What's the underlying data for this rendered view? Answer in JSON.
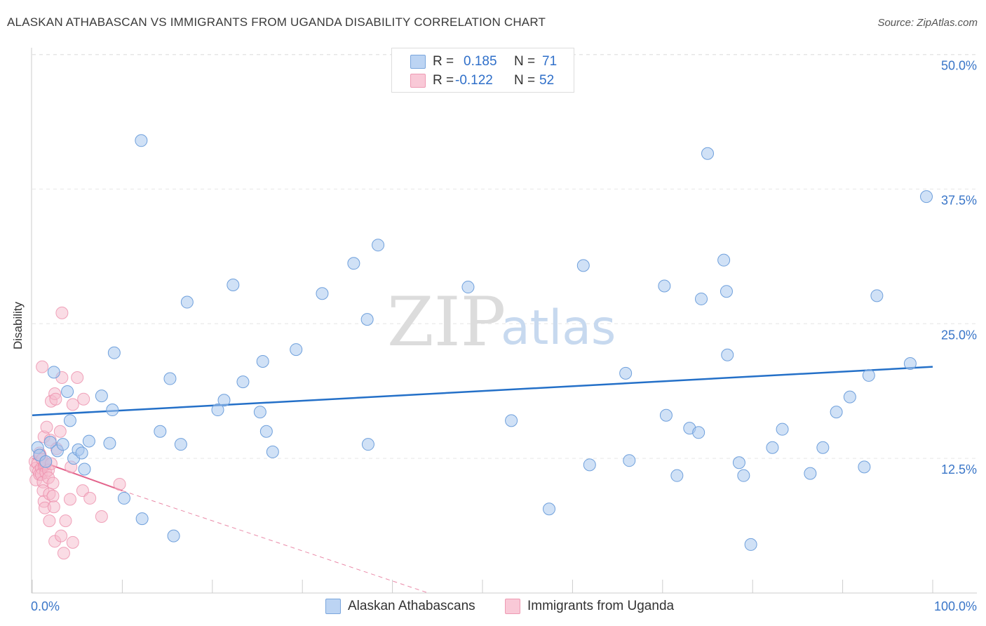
{
  "header": {
    "title": "ALASKAN ATHABASCAN VS IMMIGRANTS FROM UGANDA DISABILITY CORRELATION CHART",
    "source": "Source: ZipAtlas.com"
  },
  "watermark": {
    "zip": "ZIP",
    "atlas": "atlas"
  },
  "legend": {
    "rows": [
      {
        "r_label": "R =",
        "r_value": "0.185",
        "n_label": "N =",
        "n_value": "71"
      },
      {
        "r_label": "R =",
        "r_value": "-0.122",
        "n_label": "N =",
        "n_value": "52"
      }
    ]
  },
  "colors": {
    "series1_fill": "#a9c8ef",
    "series1_stroke": "#6fa0dc",
    "series1_line": "#2470c8",
    "series2_fill": "#f6b9cc",
    "series2_stroke": "#ec8fab",
    "series2_line": "#e3648c",
    "axis_label": "#3a76c8",
    "grid": "#e6e6e6"
  },
  "chart_data": {
    "type": "scatter",
    "title": "ALASKAN ATHABASCAN VS IMMIGRANTS FROM UGANDA DISABILITY CORRELATION CHART",
    "xlabel": "",
    "ylabel": "Disability",
    "xlim": [
      0,
      100
    ],
    "ylim": [
      0,
      52.5
    ],
    "x_tick_labels": [
      "0.0%",
      "100.0%"
    ],
    "y_ticks": [
      12.5,
      25.0,
      37.5,
      50.0
    ],
    "y_tick_labels": [
      "12.5%",
      "25.0%",
      "37.5%",
      "50.0%"
    ],
    "grid": true,
    "legend_position": "top-center",
    "series": [
      {
        "name": "Alaskan Athabascans",
        "R": 0.185,
        "N": 71,
        "trend": {
          "x": [
            0,
            100
          ],
          "y": [
            16.5,
            21.0
          ],
          "style": "solid"
        },
        "points": [
          [
            0.6,
            13.5
          ],
          [
            0.8,
            12.8
          ],
          [
            1.5,
            12.2
          ],
          [
            2.0,
            14.0
          ],
          [
            2.4,
            20.5
          ],
          [
            2.8,
            13.2
          ],
          [
            3.4,
            13.8
          ],
          [
            3.9,
            18.7
          ],
          [
            4.2,
            16.0
          ],
          [
            4.6,
            12.5
          ],
          [
            5.1,
            13.3
          ],
          [
            5.8,
            11.5
          ],
          [
            5.5,
            13.0
          ],
          [
            6.3,
            14.1
          ],
          [
            7.7,
            18.3
          ],
          [
            8.6,
            13.9
          ],
          [
            8.9,
            17.0
          ],
          [
            9.1,
            22.3
          ],
          [
            10.2,
            8.8
          ],
          [
            12.1,
            42.0
          ],
          [
            12.2,
            6.9
          ],
          [
            14.2,
            15.0
          ],
          [
            15.3,
            19.9
          ],
          [
            15.7,
            5.3
          ],
          [
            16.5,
            13.8
          ],
          [
            17.2,
            27.0
          ],
          [
            20.6,
            17.0
          ],
          [
            21.3,
            17.9
          ],
          [
            22.3,
            28.6
          ],
          [
            23.4,
            19.6
          ],
          [
            25.3,
            16.8
          ],
          [
            25.6,
            21.5
          ],
          [
            26.0,
            15.0
          ],
          [
            26.7,
            13.1
          ],
          [
            29.3,
            22.6
          ],
          [
            32.2,
            27.8
          ],
          [
            35.7,
            30.6
          ],
          [
            37.2,
            25.4
          ],
          [
            38.4,
            32.3
          ],
          [
            37.3,
            13.8
          ],
          [
            48.4,
            28.4
          ],
          [
            53.2,
            16.0
          ],
          [
            57.4,
            7.8
          ],
          [
            61.2,
            30.4
          ],
          [
            61.9,
            11.9
          ],
          [
            65.9,
            20.4
          ],
          [
            66.3,
            12.3
          ],
          [
            70.2,
            28.5
          ],
          [
            70.4,
            16.5
          ],
          [
            71.6,
            10.9
          ],
          [
            73.0,
            15.3
          ],
          [
            74.0,
            14.9
          ],
          [
            74.3,
            27.3
          ],
          [
            75.0,
            40.8
          ],
          [
            76.8,
            30.9
          ],
          [
            77.1,
            28.0
          ],
          [
            77.2,
            22.1
          ],
          [
            78.5,
            12.1
          ],
          [
            79.0,
            10.9
          ],
          [
            79.8,
            4.5
          ],
          [
            82.2,
            13.5
          ],
          [
            83.3,
            15.2
          ],
          [
            86.4,
            11.1
          ],
          [
            87.8,
            13.5
          ],
          [
            89.3,
            16.8
          ],
          [
            90.8,
            18.2
          ],
          [
            92.4,
            11.7
          ],
          [
            92.9,
            20.2
          ],
          [
            93.8,
            27.6
          ],
          [
            97.5,
            21.3
          ],
          [
            99.3,
            36.8
          ]
        ]
      },
      {
        "name": "Immigrants from Uganda",
        "R": -0.122,
        "N": 52,
        "trend": {
          "x": [
            0,
            10
          ],
          "y": [
            12.5,
            9.5
          ],
          "style": "solid",
          "extended_to": [
            44,
            0
          ],
          "extended_style": "dashed"
        },
        "points": [
          [
            0.3,
            12.2
          ],
          [
            0.4,
            11.6
          ],
          [
            0.4,
            10.5
          ],
          [
            0.6,
            12.0
          ],
          [
            0.7,
            11.3
          ],
          [
            0.8,
            13.0
          ],
          [
            0.8,
            11.0
          ],
          [
            0.9,
            12.8
          ],
          [
            1.0,
            11.6
          ],
          [
            1.1,
            12.4
          ],
          [
            1.0,
            11.0
          ],
          [
            1.2,
            10.3
          ],
          [
            1.2,
            9.5
          ],
          [
            1.3,
            14.5
          ],
          [
            1.3,
            11.8
          ],
          [
            1.4,
            11.9
          ],
          [
            1.5,
            11.2
          ],
          [
            1.1,
            21.0
          ],
          [
            1.3,
            8.5
          ],
          [
            1.4,
            7.9
          ],
          [
            1.5,
            12.0
          ],
          [
            1.6,
            15.4
          ],
          [
            1.8,
            11.4
          ],
          [
            1.8,
            10.7
          ],
          [
            1.9,
            9.2
          ],
          [
            2.0,
            14.2
          ],
          [
            1.9,
            6.7
          ],
          [
            2.1,
            12.0
          ],
          [
            2.1,
            17.8
          ],
          [
            2.3,
            10.2
          ],
          [
            2.3,
            9.0
          ],
          [
            2.4,
            8.0
          ],
          [
            2.5,
            18.5
          ],
          [
            2.6,
            18.0
          ],
          [
            2.7,
            13.4
          ],
          [
            2.5,
            4.8
          ],
          [
            3.1,
            15.0
          ],
          [
            3.2,
            5.3
          ],
          [
            3.3,
            20.0
          ],
          [
            3.5,
            3.7
          ],
          [
            3.3,
            26.0
          ],
          [
            3.7,
            6.7
          ],
          [
            4.3,
            11.7
          ],
          [
            4.5,
            17.5
          ],
          [
            4.5,
            4.7
          ],
          [
            4.2,
            8.7
          ],
          [
            5.0,
            20.0
          ],
          [
            5.6,
            9.5
          ],
          [
            5.7,
            18.0
          ],
          [
            6.4,
            8.8
          ],
          [
            7.7,
            7.1
          ],
          [
            9.7,
            10.1
          ]
        ]
      }
    ]
  },
  "bottom_legend": [
    {
      "label": "Alaskan Athabascans"
    },
    {
      "label": "Immigrants from Uganda"
    }
  ]
}
